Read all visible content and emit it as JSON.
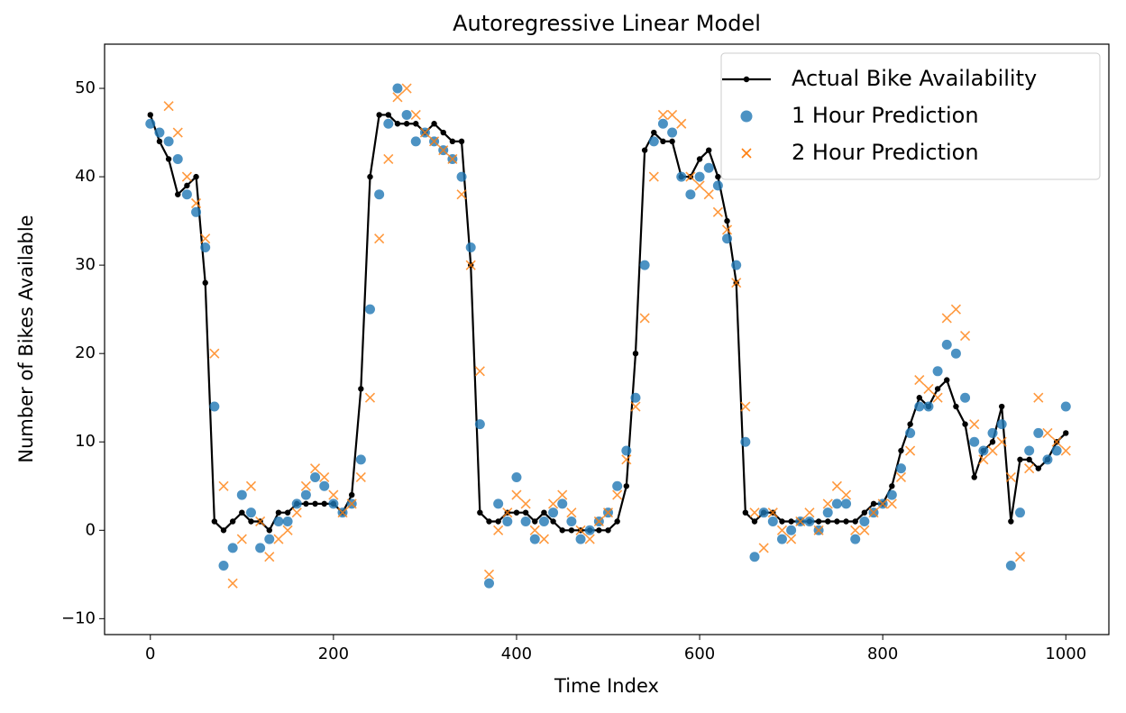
{
  "chart_data": {
    "type": "line",
    "title": "Autoregressive Linear Model",
    "xlabel": "Time Index",
    "ylabel": "Number of Bikes Available",
    "x": [
      0,
      10,
      20,
      30,
      40,
      50,
      60,
      70,
      80,
      90,
      100,
      110,
      120,
      130,
      140,
      150,
      160,
      170,
      180,
      190,
      200,
      210,
      220,
      230,
      240,
      250,
      260,
      270,
      280,
      290,
      300,
      310,
      320,
      330,
      340,
      350,
      360,
      370,
      380,
      390,
      400,
      410,
      420,
      430,
      440,
      450,
      460,
      470,
      480,
      490,
      500,
      510,
      520,
      530,
      540,
      550,
      560,
      570,
      580,
      590,
      600,
      610,
      620,
      630,
      640,
      650,
      660,
      670,
      680,
      690,
      700,
      710,
      720,
      730,
      740,
      750,
      760,
      770,
      780,
      790,
      800,
      810,
      820,
      830,
      840,
      850,
      860,
      870,
      880,
      890,
      900,
      910,
      920,
      930,
      940,
      950,
      960,
      970,
      980,
      990,
      1000
    ],
    "series": [
      {
        "name": "Actual Bike Availability",
        "color": "#000000",
        "mode": "line",
        "values": [
          47,
          44,
          42,
          38,
          39,
          40,
          28,
          1,
          0,
          1,
          2,
          1,
          1,
          0,
          2,
          2,
          3,
          3,
          3,
          3,
          3,
          2,
          4,
          16,
          40,
          47,
          47,
          46,
          46,
          46,
          45,
          46,
          45,
          44,
          44,
          30,
          2,
          1,
          1,
          2,
          2,
          2,
          1,
          2,
          1,
          0,
          0,
          0,
          0,
          0,
          0,
          1,
          5,
          20,
          43,
          45,
          44,
          44,
          40,
          40,
          42,
          43,
          40,
          35,
          28,
          2,
          1,
          2,
          2,
          1,
          1,
          1,
          1,
          1,
          1,
          1,
          1,
          1,
          2,
          3,
          3,
          5,
          9,
          12,
          15,
          14,
          16,
          17,
          14,
          12,
          6,
          9,
          10,
          14,
          1,
          8,
          8,
          7,
          8,
          10,
          11
        ]
      },
      {
        "name": "1 Hour Prediction",
        "color": "#1f77b4",
        "mode": "circle",
        "values": [
          46,
          45,
          44,
          42,
          38,
          36,
          32,
          14,
          -4,
          -2,
          4,
          2,
          -2,
          -1,
          1,
          1,
          3,
          4,
          6,
          5,
          3,
          2,
          3,
          8,
          25,
          38,
          46,
          50,
          47,
          44,
          45,
          44,
          43,
          42,
          40,
          32,
          12,
          -6,
          3,
          1,
          6,
          1,
          -1,
          1,
          2,
          3,
          1,
          -1,
          0,
          1,
          2,
          5,
          9,
          15,
          30,
          44,
          46,
          45,
          40,
          38,
          40,
          41,
          39,
          33,
          30,
          10,
          -3,
          2,
          1,
          -1,
          0,
          1,
          1,
          0,
          2,
          3,
          3,
          -1,
          1,
          2,
          3,
          4,
          7,
          11,
          14,
          14,
          18,
          21,
          20,
          15,
          10,
          9,
          11,
          12,
          -4,
          2,
          9,
          11,
          8,
          9,
          14
        ]
      },
      {
        "name": "2 Hour Prediction",
        "color": "#ff7f0e",
        "mode": "x",
        "values": [
          null,
          null,
          48,
          45,
          40,
          37,
          33,
          20,
          5,
          -6,
          -1,
          5,
          1,
          -3,
          -1,
          0,
          2,
          5,
          7,
          6,
          4,
          2,
          3,
          6,
          15,
          33,
          42,
          49,
          50,
          47,
          45,
          44,
          43,
          42,
          38,
          30,
          18,
          -5,
          0,
          2,
          4,
          3,
          0,
          -1,
          3,
          4,
          2,
          0,
          -1,
          1,
          2,
          4,
          8,
          14,
          24,
          40,
          47,
          47,
          46,
          40,
          39,
          38,
          36,
          34,
          28,
          14,
          2,
          -2,
          2,
          0,
          -1,
          1,
          2,
          0,
          3,
          5,
          4,
          0,
          0,
          2,
          3,
          3,
          6,
          9,
          17,
          16,
          15,
          24,
          25,
          22,
          12,
          8,
          9,
          10,
          6,
          -3,
          7,
          15,
          11,
          10,
          9
        ]
      }
    ],
    "xlim": [
      -50,
      1047
    ],
    "xticks": [
      0,
      200,
      400,
      600,
      800,
      1000
    ],
    "ylim": [
      -11.8,
      55
    ],
    "yticks": [
      {
        "value": -10,
        "label": "−10"
      },
      0,
      10,
      20,
      30,
      40,
      50
    ],
    "legend": "upper right"
  }
}
